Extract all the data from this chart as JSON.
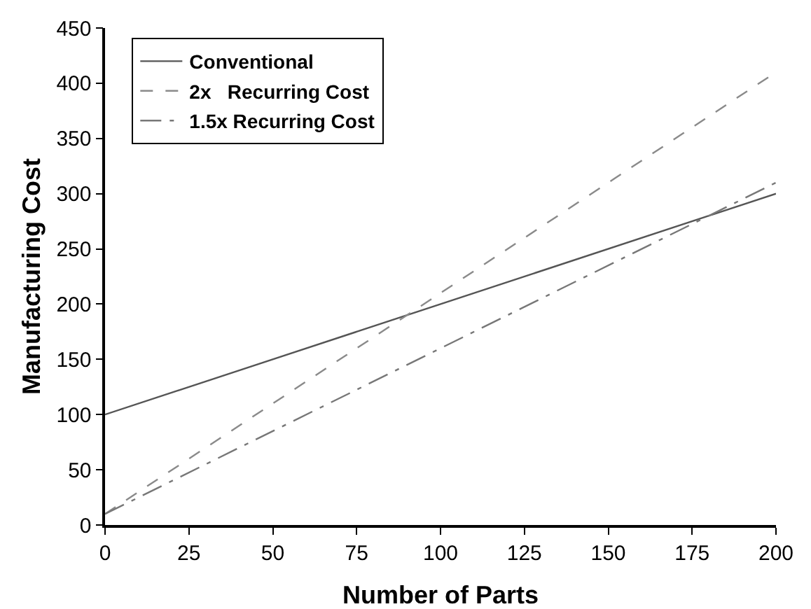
{
  "chart_data": {
    "type": "line",
    "xlabel": "Number of Parts",
    "ylabel": "Manufacturing Cost",
    "x": [
      0,
      200
    ],
    "series": [
      {
        "name": "Conventional",
        "color": "#555555",
        "values": [
          100,
          300
        ],
        "line_style": "solid"
      },
      {
        "name": "2x   Recurring Cost",
        "color": "#8a8a8a",
        "values": [
          10,
          410
        ],
        "line_style": "dashed"
      },
      {
        "name": "1.5x Recurring Cost",
        "color": "#777777",
        "values": [
          10,
          310
        ],
        "line_style": "dashdot"
      }
    ],
    "xlim": [
      0,
      200
    ],
    "xticks": [
      0,
      25,
      50,
      75,
      100,
      125,
      150,
      175,
      200
    ],
    "ylim": [
      0,
      450
    ],
    "yticks": [
      0,
      50,
      100,
      150,
      200,
      250,
      300,
      350,
      400,
      450
    ],
    "grid": false,
    "legend": "top left",
    "marker": "none"
  }
}
